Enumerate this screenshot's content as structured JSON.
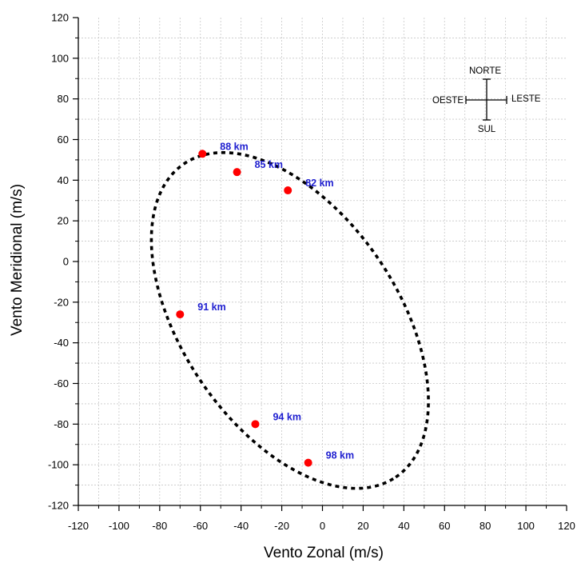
{
  "chart_data": {
    "type": "scatter",
    "title": "",
    "xlabel": "Vento Zonal (m/s)",
    "ylabel": "Vento Meridional (m/s)",
    "xlim": [
      -120,
      120
    ],
    "ylim": [
      -120,
      120
    ],
    "xticks": [
      "-120",
      "-100",
      "-80",
      "-60",
      "-40",
      "-20",
      "0",
      "20",
      "40",
      "60",
      "80",
      "100",
      "120"
    ],
    "yticks": [
      "120",
      "100",
      "80",
      "60",
      "40",
      "20",
      "0",
      "-20",
      "-40",
      "-60",
      "-80",
      "-100",
      "-120"
    ],
    "grid": true,
    "ellipse": {
      "style": "dotted",
      "color": "#000000",
      "center_x": -16,
      "center_y": -29,
      "semi_major": 93,
      "semi_minor": 53,
      "angle_deg": -56
    },
    "points": [
      {
        "x": -59,
        "y": 53,
        "label": "88 km"
      },
      {
        "x": -42,
        "y": 44,
        "label": "85 km"
      },
      {
        "x": -17,
        "y": 35,
        "label": "82 km"
      },
      {
        "x": -70,
        "y": -26,
        "label": "91 km"
      },
      {
        "x": -33,
        "y": -80,
        "label": "94 km"
      },
      {
        "x": -7,
        "y": -99,
        "label": "98 km"
      }
    ],
    "point_color": "#ff0000",
    "label_color": "#1f1fd0"
  },
  "compass": {
    "north": "NORTE",
    "south": "SUL",
    "west": "OESTE",
    "east": "LESTE"
  }
}
